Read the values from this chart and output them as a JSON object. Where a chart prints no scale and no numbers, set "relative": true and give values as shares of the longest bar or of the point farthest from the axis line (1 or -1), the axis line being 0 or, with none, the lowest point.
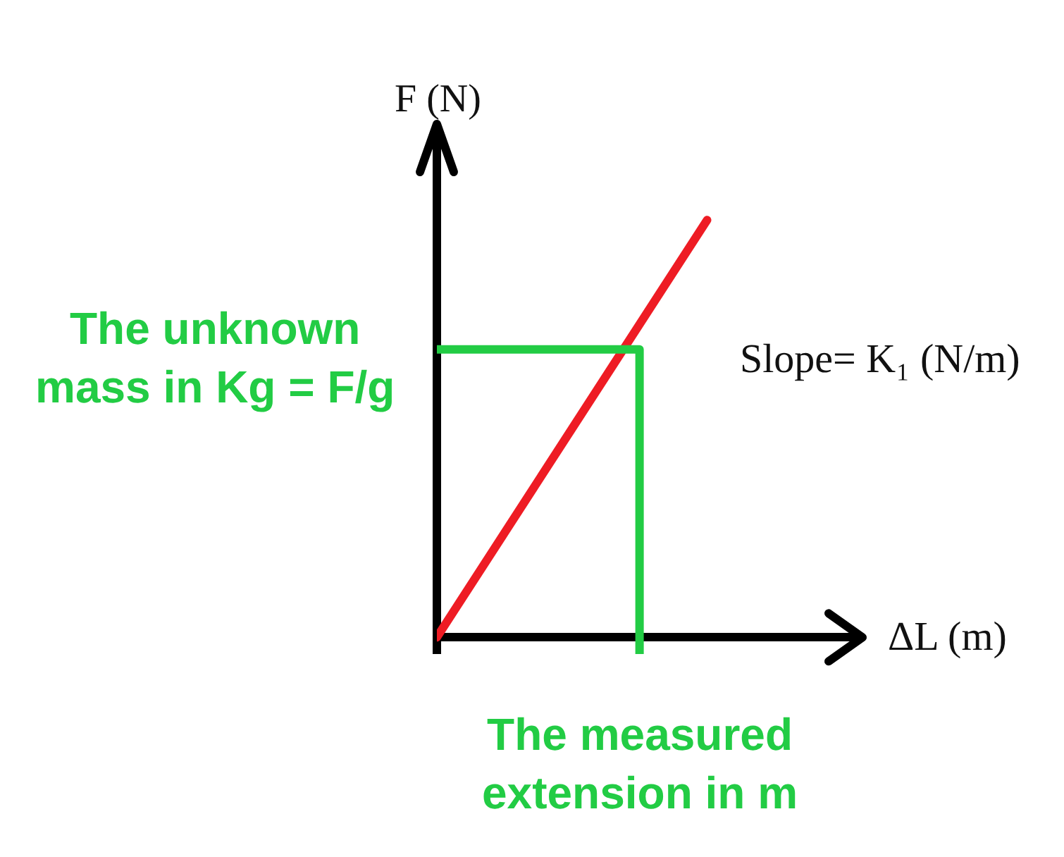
{
  "chart_data": {
    "type": "line",
    "relative": true,
    "xlabel": "ΔL (m)",
    "ylabel": "F (N)",
    "categories": [
      null,
      null,
      null,
      null,
      null,
      null,
      null
    ],
    "series": [
      {
        "color": "#ee1c24",
        "values": [
          0,
          0.25,
          0.5,
          0.75,
          1,
          null,
          null
        ]
      },
      {
        "type": "step",
        "color": "#22cc44",
        "values": [
          0.69,
          0.69,
          0.69,
          -0.04,
          null,
          null,
          null
        ]
      }
    ],
    "annotations": [
      "Slope= K₁ (N/m)",
      "The unknown mass in Kg = F/g",
      {
        "text": "The measured extension in m",
        "y": -0.04
      }
    ]
  }
}
